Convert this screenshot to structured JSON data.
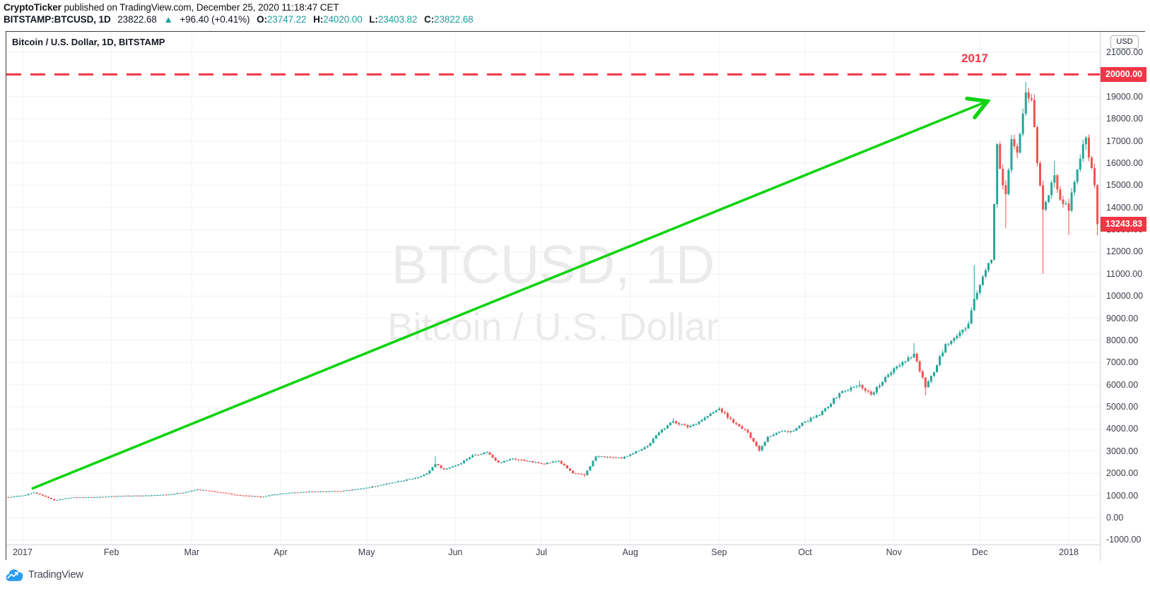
{
  "header": {
    "byline_author": "CryptoTicker",
    "byline_rest": " published on TradingView.com, December 25, 2020 11:18:47 CET",
    "quote": {
      "symbol": "BITSTAMP:BTCUSD, 1D",
      "last": "23822.68",
      "up_triangle": "▲",
      "change": "+96.40 (+0.41%)",
      "o_label": "O:",
      "o_value": "23747.22",
      "h_label": "H:",
      "h_value": "24020.00",
      "l_label": "L:",
      "l_value": "23403.82",
      "c_label": "C:",
      "c_value": "23822.68"
    }
  },
  "chart": {
    "legend": "Bitcoin / U.S. Dollar, 1D, BITSTAMP",
    "watermark_line1": "BTCUSD, 1D",
    "watermark_line2": "Bitcoin / U.S. Dollar",
    "annotation": "2017",
    "currency_button": "USD",
    "alert_price_label": "20000.00",
    "last_price_label": "13243.83"
  },
  "footer": {
    "logo_text": "TradingView"
  },
  "colors": {
    "candle_up": "#26a69a",
    "candle_down": "#ef5350",
    "accent_red": "#f23645",
    "arrow_green": "#0fd30f",
    "grid": "#f0f2f5",
    "axis_text": "#3a3e48",
    "teal_text": "#1d9d9d",
    "watermark": "rgba(19,23,34,0.09)",
    "logo_blue": "#2a9bf2"
  },
  "chart_data": {
    "type": "candlestick",
    "symbol": "BITSTAMP:BTCUSD",
    "interval": "1D",
    "title": "Bitcoin / U.S. Dollar, 1D, BITSTAMP",
    "y_axis": {
      "min": -1000,
      "max": 21000,
      "step": 1000,
      "unit": "USD"
    },
    "y_tick_labels": [
      "21000.00",
      "20000.00",
      "19000.00",
      "18000.00",
      "17000.00",
      "16000.00",
      "15000.00",
      "14000.00",
      "13000.00",
      "12000.00",
      "11000.00",
      "10000.00",
      "9000.00",
      "8000.00",
      "7000.00",
      "6000.00",
      "5000.00",
      "4000.00",
      "3000.00",
      "2000.00",
      "1000.00",
      "0.00",
      "-1000.00"
    ],
    "x_tick_labels": [
      "2017",
      "Feb",
      "Mar",
      "Apr",
      "May",
      "Jun",
      "Jul",
      "Aug",
      "Sep",
      "Oct",
      "Nov",
      "Dec",
      "2018"
    ],
    "x_tick_day_offsets": [
      0,
      31,
      59,
      90,
      120,
      151,
      181,
      212,
      243,
      273,
      304,
      334,
      365
    ],
    "alert_line_price": 20000,
    "last_price": 13243.83,
    "grid": true,
    "legend_position": "top-left",
    "anchors_note": "close path of BTC/USD Dec-26-2016 .. Jan-10-2018 read off the chart; d = days since Jan 1 2017; optional hi/lo are visible wick extremes",
    "anchors": [
      {
        "d": -6,
        "c": 905
      },
      {
        "d": 0,
        "c": 998
      },
      {
        "d": 4,
        "c": 1130,
        "hi": 1150
      },
      {
        "d": 11,
        "c": 790,
        "lo": 752
      },
      {
        "d": 17,
        "c": 905
      },
      {
        "d": 24,
        "c": 920
      },
      {
        "d": 31,
        "c": 965
      },
      {
        "d": 45,
        "c": 1005
      },
      {
        "d": 52,
        "c": 1060
      },
      {
        "d": 58,
        "c": 1180
      },
      {
        "d": 61,
        "c": 1270,
        "hi": 1290
      },
      {
        "d": 68,
        "c": 1150
      },
      {
        "d": 76,
        "c": 1000
      },
      {
        "d": 83,
        "c": 940,
        "lo": 900
      },
      {
        "d": 90,
        "c": 1085
      },
      {
        "d": 98,
        "c": 1160
      },
      {
        "d": 112,
        "c": 1210
      },
      {
        "d": 120,
        "c": 1350
      },
      {
        "d": 130,
        "c": 1600
      },
      {
        "d": 137,
        "c": 1790
      },
      {
        "d": 141,
        "c": 1990
      },
      {
        "d": 144,
        "c": 2420,
        "hi": 2760
      },
      {
        "d": 147,
        "c": 2180
      },
      {
        "d": 152,
        "c": 2410
      },
      {
        "d": 157,
        "c": 2820
      },
      {
        "d": 162,
        "c": 2950,
        "hi": 3000
      },
      {
        "d": 166,
        "c": 2480
      },
      {
        "d": 171,
        "c": 2660
      },
      {
        "d": 176,
        "c": 2550
      },
      {
        "d": 181,
        "c": 2430
      },
      {
        "d": 187,
        "c": 2560
      },
      {
        "d": 192,
        "c": 2000
      },
      {
        "d": 196,
        "c": 1920,
        "lo": 1835
      },
      {
        "d": 200,
        "c": 2760
      },
      {
        "d": 204,
        "c": 2740
      },
      {
        "d": 209,
        "c": 2670
      },
      {
        "d": 212,
        "c": 2860
      },
      {
        "d": 218,
        "c": 3240
      },
      {
        "d": 223,
        "c": 3980
      },
      {
        "d": 227,
        "c": 4350,
        "hi": 4480
      },
      {
        "d": 232,
        "c": 4080
      },
      {
        "d": 236,
        "c": 4340
      },
      {
        "d": 243,
        "c": 4920,
        "hi": 4980
      },
      {
        "d": 248,
        "c": 4280
      },
      {
        "d": 253,
        "c": 3840
      },
      {
        "d": 257,
        "c": 3030,
        "lo": 2975
      },
      {
        "d": 260,
        "c": 3660
      },
      {
        "d": 264,
        "c": 3880
      },
      {
        "d": 269,
        "c": 3920
      },
      {
        "d": 273,
        "c": 4340
      },
      {
        "d": 278,
        "c": 4620
      },
      {
        "d": 285,
        "c": 5620
      },
      {
        "d": 292,
        "c": 5990,
        "hi": 6180
      },
      {
        "d": 296,
        "c": 5560
      },
      {
        "d": 300,
        "c": 6130
      },
      {
        "d": 304,
        "c": 6740
      },
      {
        "d": 311,
        "c": 7400,
        "hi": 7880
      },
      {
        "d": 315,
        "c": 5880,
        "lo": 5520
      },
      {
        "d": 318,
        "c": 6560
      },
      {
        "d": 322,
        "c": 7830
      },
      {
        "d": 326,
        "c": 8200
      },
      {
        "d": 330,
        "c": 8750
      },
      {
        "d": 332,
        "c": 9870,
        "hi": 11400
      },
      {
        "d": 335,
        "c": 10880
      },
      {
        "d": 338,
        "c": 11640
      },
      {
        "d": 340,
        "c": 16850,
        "hi": 16880
      },
      {
        "d": 342,
        "c": 15000
      },
      {
        "d": 343,
        "c": 14600,
        "lo": 13060
      },
      {
        "d": 345,
        "c": 17080,
        "hi": 17270
      },
      {
        "d": 347,
        "c": 16470
      },
      {
        "d": 350,
        "c": 19190,
        "hi": 19660
      },
      {
        "d": 352,
        "c": 18850
      },
      {
        "d": 354,
        "c": 16000
      },
      {
        "d": 356,
        "c": 13900,
        "lo": 11000
      },
      {
        "d": 358,
        "c": 14550
      },
      {
        "d": 360,
        "c": 15450,
        "hi": 16100
      },
      {
        "d": 362,
        "c": 14350
      },
      {
        "d": 365,
        "c": 13850,
        "lo": 12760
      },
      {
        "d": 367,
        "c": 15150
      },
      {
        "d": 369,
        "c": 16200
      },
      {
        "d": 371,
        "c": 17150,
        "hi": 17230
      },
      {
        "d": 372,
        "c": 16250
      },
      {
        "d": 374,
        "c": 15000
      },
      {
        "d": 375,
        "c": 13243.83,
        "hi": 15060,
        "lo": 12740
      }
    ],
    "annotations": [
      {
        "type": "text",
        "text": "2017",
        "color": "#f23645"
      },
      {
        "type": "dashed_hline",
        "price": 20000,
        "color": "#f23645"
      },
      {
        "type": "arrow",
        "from_day": 3,
        "from_price": 1300,
        "to_day": 341,
        "to_price": 18800,
        "color": "#0fd30f"
      }
    ]
  }
}
